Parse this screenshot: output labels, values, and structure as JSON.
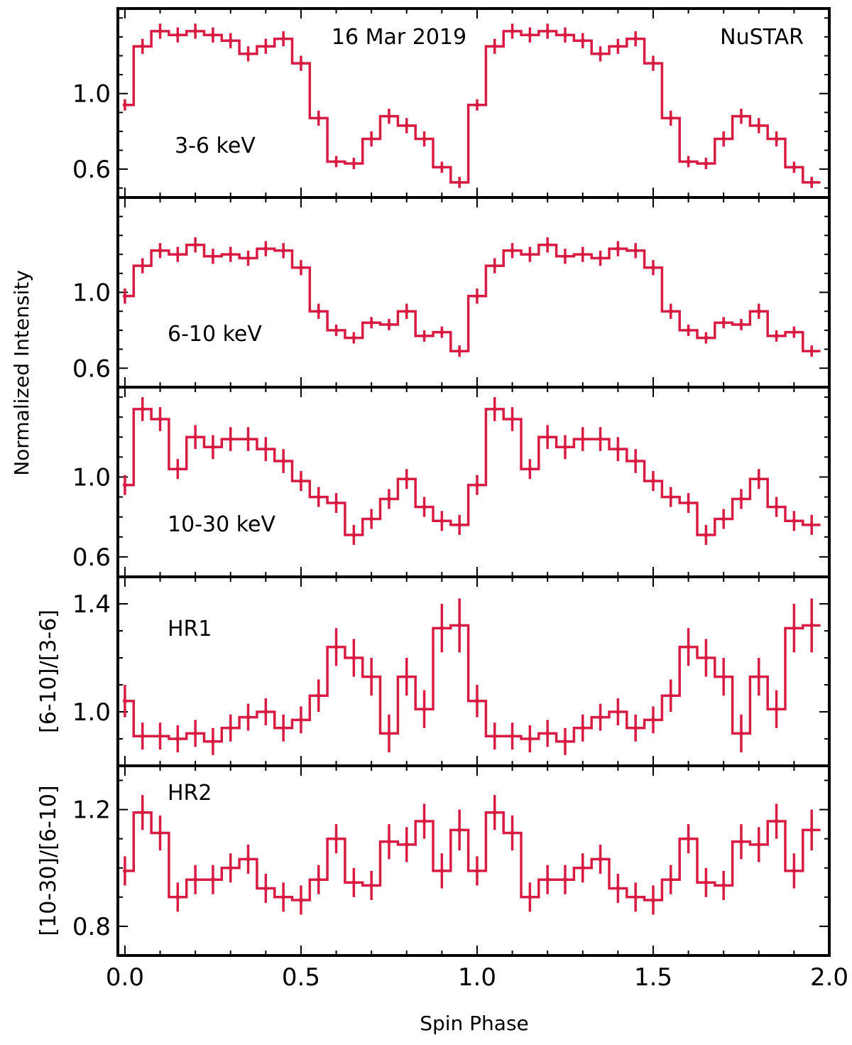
{
  "figure": {
    "xlabel": "Spin Phase",
    "ylabel_shared": "Normalized Intensity",
    "xlim": [
      -0.02,
      2.0
    ],
    "xticks": [
      0.0,
      0.5,
      1.0,
      1.5,
      2.0
    ],
    "xtick_labels": [
      "0.0",
      "0.5",
      "1.0",
      "1.5",
      "2.0"
    ],
    "line_color": "#d81b43"
  },
  "chart_data": [
    {
      "type": "line",
      "step": true,
      "annotations": [
        "16 Mar 2019",
        "NuSTAR",
        "3-6 keV"
      ],
      "ylim": [
        0.45,
        1.45
      ],
      "yticks": [
        0.6,
        1.0
      ],
      "ytick_labels": [
        "0.6",
        "1.0"
      ],
      "x": [
        0.0,
        0.05,
        0.1,
        0.15,
        0.2,
        0.25,
        0.3,
        0.35,
        0.4,
        0.45,
        0.5,
        0.55,
        0.6,
        0.65,
        0.7,
        0.75,
        0.8,
        0.85,
        0.9,
        0.95,
        1.0,
        1.05,
        1.1,
        1.15,
        1.2,
        1.25,
        1.3,
        1.35,
        1.4,
        1.45,
        1.5,
        1.55,
        1.6,
        1.65,
        1.7,
        1.75,
        1.8,
        1.85,
        1.9,
        1.95
      ],
      "values": [
        0.94,
        1.25,
        1.33,
        1.31,
        1.33,
        1.31,
        1.28,
        1.21,
        1.25,
        1.29,
        1.16,
        0.87,
        0.64,
        0.63,
        0.76,
        0.88,
        0.83,
        0.76,
        0.61,
        0.53,
        0.94,
        1.25,
        1.33,
        1.31,
        1.33,
        1.31,
        1.28,
        1.21,
        1.25,
        1.29,
        1.16,
        0.87,
        0.64,
        0.63,
        0.76,
        0.88,
        0.83,
        0.76,
        0.61,
        0.53
      ],
      "errors": [
        0.03,
        0.04,
        0.04,
        0.04,
        0.04,
        0.04,
        0.04,
        0.04,
        0.04,
        0.04,
        0.04,
        0.04,
        0.03,
        0.03,
        0.04,
        0.04,
        0.04,
        0.04,
        0.03,
        0.03,
        0.03,
        0.04,
        0.04,
        0.04,
        0.04,
        0.04,
        0.04,
        0.04,
        0.04,
        0.04,
        0.04,
        0.04,
        0.03,
        0.03,
        0.04,
        0.04,
        0.04,
        0.04,
        0.03,
        0.03
      ]
    },
    {
      "type": "line",
      "step": true,
      "annotations": [
        "6-10 keV"
      ],
      "ylim": [
        0.5,
        1.5
      ],
      "yticks": [
        0.6,
        1.0
      ],
      "ytick_labels": [
        "0.6",
        "1.0"
      ],
      "x": [
        0.0,
        0.05,
        0.1,
        0.15,
        0.2,
        0.25,
        0.3,
        0.35,
        0.4,
        0.45,
        0.5,
        0.55,
        0.6,
        0.65,
        0.7,
        0.75,
        0.8,
        0.85,
        0.9,
        0.95,
        1.0,
        1.05,
        1.1,
        1.15,
        1.2,
        1.25,
        1.3,
        1.35,
        1.4,
        1.45,
        1.5,
        1.55,
        1.6,
        1.65,
        1.7,
        1.75,
        1.8,
        1.85,
        1.9,
        1.95
      ],
      "values": [
        0.98,
        1.14,
        1.22,
        1.2,
        1.25,
        1.19,
        1.2,
        1.18,
        1.23,
        1.22,
        1.13,
        0.9,
        0.8,
        0.76,
        0.84,
        0.83,
        0.9,
        0.77,
        0.79,
        0.69,
        0.98,
        1.14,
        1.22,
        1.2,
        1.25,
        1.19,
        1.2,
        1.18,
        1.23,
        1.22,
        1.13,
        0.9,
        0.8,
        0.76,
        0.84,
        0.83,
        0.9,
        0.77,
        0.79,
        0.69
      ],
      "errors": [
        0.04,
        0.04,
        0.04,
        0.04,
        0.04,
        0.04,
        0.04,
        0.04,
        0.04,
        0.04,
        0.04,
        0.04,
        0.03,
        0.03,
        0.03,
        0.03,
        0.04,
        0.03,
        0.03,
        0.03,
        0.04,
        0.04,
        0.04,
        0.04,
        0.04,
        0.04,
        0.04,
        0.04,
        0.04,
        0.04,
        0.04,
        0.04,
        0.03,
        0.03,
        0.03,
        0.03,
        0.04,
        0.03,
        0.03,
        0.03
      ]
    },
    {
      "type": "line",
      "step": true,
      "annotations": [
        "10-30 keV"
      ],
      "ylim": [
        0.5,
        1.45
      ],
      "yticks": [
        0.6,
        1.0
      ],
      "ytick_labels": [
        "0.6",
        "1.0"
      ],
      "x": [
        0.0,
        0.05,
        0.1,
        0.15,
        0.2,
        0.25,
        0.3,
        0.35,
        0.4,
        0.45,
        0.5,
        0.55,
        0.6,
        0.65,
        0.7,
        0.75,
        0.8,
        0.85,
        0.9,
        0.95,
        1.0,
        1.05,
        1.1,
        1.15,
        1.2,
        1.25,
        1.3,
        1.35,
        1.4,
        1.45,
        1.5,
        1.55,
        1.6,
        1.65,
        1.7,
        1.75,
        1.8,
        1.85,
        1.9,
        1.95
      ],
      "values": [
        0.96,
        1.34,
        1.29,
        1.04,
        1.2,
        1.15,
        1.19,
        1.19,
        1.14,
        1.08,
        0.98,
        0.9,
        0.87,
        0.71,
        0.79,
        0.89,
        0.99,
        0.85,
        0.78,
        0.76,
        0.96,
        1.34,
        1.29,
        1.04,
        1.2,
        1.15,
        1.19,
        1.19,
        1.14,
        1.08,
        0.98,
        0.9,
        0.87,
        0.71,
        0.79,
        0.89,
        0.99,
        0.85,
        0.78,
        0.76
      ],
      "errors": [
        0.05,
        0.06,
        0.06,
        0.05,
        0.06,
        0.06,
        0.06,
        0.06,
        0.06,
        0.06,
        0.05,
        0.05,
        0.05,
        0.05,
        0.05,
        0.05,
        0.05,
        0.05,
        0.05,
        0.05,
        0.05,
        0.06,
        0.06,
        0.05,
        0.06,
        0.06,
        0.06,
        0.06,
        0.06,
        0.06,
        0.05,
        0.05,
        0.05,
        0.05,
        0.05,
        0.05,
        0.05,
        0.05,
        0.05,
        0.05
      ]
    },
    {
      "type": "line",
      "step": true,
      "annotations": [
        "HR1"
      ],
      "ylabel": "[6-10]/[3-6]",
      "ylim": [
        0.8,
        1.5
      ],
      "yticks": [
        1.0,
        1.4
      ],
      "ytick_labels": [
        "1.0",
        "1.4"
      ],
      "x": [
        0.0,
        0.05,
        0.1,
        0.15,
        0.2,
        0.25,
        0.3,
        0.35,
        0.4,
        0.45,
        0.5,
        0.55,
        0.6,
        0.65,
        0.7,
        0.75,
        0.8,
        0.85,
        0.9,
        0.95,
        1.0,
        1.05,
        1.1,
        1.15,
        1.2,
        1.25,
        1.3,
        1.35,
        1.4,
        1.45,
        1.5,
        1.55,
        1.6,
        1.65,
        1.7,
        1.75,
        1.8,
        1.85,
        1.9,
        1.95
      ],
      "values": [
        1.04,
        0.91,
        0.91,
        0.9,
        0.92,
        0.89,
        0.94,
        0.98,
        1.0,
        0.94,
        0.97,
        1.06,
        1.24,
        1.2,
        1.13,
        0.92,
        1.13,
        1.01,
        1.31,
        1.32,
        1.04,
        0.91,
        0.91,
        0.9,
        0.92,
        0.89,
        0.94,
        0.98,
        1.0,
        0.94,
        0.97,
        1.06,
        1.24,
        1.2,
        1.13,
        0.92,
        1.13,
        1.01,
        1.31,
        1.32
      ],
      "errors": [
        0.06,
        0.05,
        0.05,
        0.05,
        0.05,
        0.05,
        0.05,
        0.05,
        0.05,
        0.05,
        0.05,
        0.06,
        0.07,
        0.07,
        0.07,
        0.07,
        0.07,
        0.07,
        0.09,
        0.1,
        0.06,
        0.05,
        0.05,
        0.05,
        0.05,
        0.05,
        0.05,
        0.05,
        0.05,
        0.05,
        0.05,
        0.06,
        0.07,
        0.07,
        0.07,
        0.07,
        0.07,
        0.07,
        0.09,
        0.1
      ]
    },
    {
      "type": "line",
      "step": true,
      "annotations": [
        "HR2"
      ],
      "ylabel": "[10-30]/[6-10]",
      "ylim": [
        0.7,
        1.35
      ],
      "yticks": [
        0.8,
        1.2
      ],
      "ytick_labels": [
        "0.8",
        "1.2"
      ],
      "x": [
        0.0,
        0.05,
        0.1,
        0.15,
        0.2,
        0.25,
        0.3,
        0.35,
        0.4,
        0.45,
        0.5,
        0.55,
        0.6,
        0.65,
        0.7,
        0.75,
        0.8,
        0.85,
        0.9,
        0.95,
        1.0,
        1.05,
        1.1,
        1.15,
        1.2,
        1.25,
        1.3,
        1.35,
        1.4,
        1.45,
        1.5,
        1.55,
        1.6,
        1.65,
        1.7,
        1.75,
        1.8,
        1.85,
        1.9,
        1.95
      ],
      "values": [
        0.99,
        1.19,
        1.12,
        0.9,
        0.96,
        0.96,
        1.0,
        1.03,
        0.93,
        0.9,
        0.89,
        0.96,
        1.1,
        0.95,
        0.94,
        1.09,
        1.08,
        1.16,
        0.99,
        1.13,
        0.99,
        1.19,
        1.12,
        0.9,
        0.96,
        0.96,
        1.0,
        1.03,
        0.93,
        0.9,
        0.89,
        0.96,
        1.1,
        0.95,
        0.94,
        1.09,
        1.08,
        1.16,
        0.99,
        1.13
      ],
      "errors": [
        0.05,
        0.06,
        0.06,
        0.05,
        0.05,
        0.05,
        0.05,
        0.05,
        0.05,
        0.05,
        0.05,
        0.05,
        0.05,
        0.05,
        0.05,
        0.06,
        0.06,
        0.06,
        0.06,
        0.07,
        0.05,
        0.06,
        0.06,
        0.05,
        0.05,
        0.05,
        0.05,
        0.05,
        0.05,
        0.05,
        0.05,
        0.05,
        0.05,
        0.05,
        0.05,
        0.06,
        0.06,
        0.06,
        0.06,
        0.07
      ]
    }
  ]
}
